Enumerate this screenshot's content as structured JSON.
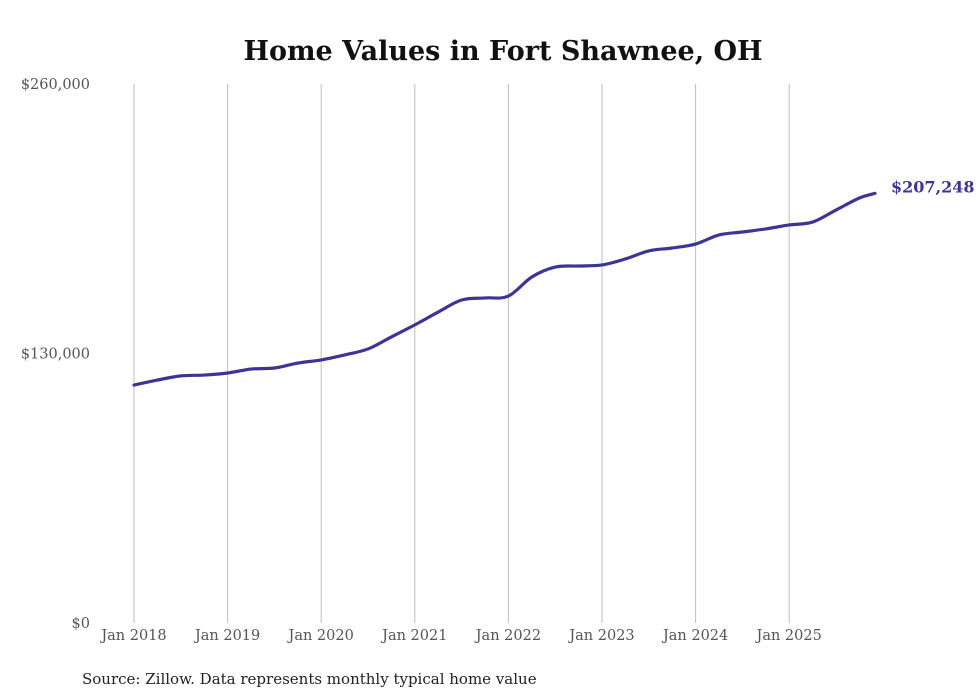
{
  "chart_data": {
    "type": "line",
    "title": "Home Values in Fort Shawnee, OH",
    "xlabel": "",
    "ylabel": "",
    "ylim": [
      0,
      260000
    ],
    "y_ticks": [
      "$0",
      "$130,000",
      "$260,000"
    ],
    "y_tick_values": [
      0,
      130000,
      260000
    ],
    "x_ticks": [
      "Jan 2018",
      "Jan 2019",
      "Jan 2020",
      "Jan 2021",
      "Jan 2022",
      "Jan 2023",
      "Jan 2024",
      "Jan 2025"
    ],
    "grid": "vertical",
    "line_color": "#3d3594",
    "end_label": "$207,248",
    "series": [
      {
        "name": "Typical home value",
        "x": [
          "2018-01",
          "2018-04",
          "2018-07",
          "2018-10",
          "2019-01",
          "2019-04",
          "2019-07",
          "2019-10",
          "2020-01",
          "2020-04",
          "2020-07",
          "2020-10",
          "2021-01",
          "2021-04",
          "2021-07",
          "2021-10",
          "2022-01",
          "2022-04",
          "2022-07",
          "2022-10",
          "2023-01",
          "2023-04",
          "2023-07",
          "2023-10",
          "2024-01",
          "2024-04",
          "2024-07",
          "2024-10",
          "2025-01",
          "2025-04",
          "2025-07",
          "2025-10",
          "2025-12"
        ],
        "month_index": [
          0,
          3,
          6,
          9,
          12,
          15,
          18,
          21,
          24,
          27,
          30,
          33,
          36,
          39,
          42,
          45,
          48,
          51,
          54,
          57,
          60,
          63,
          66,
          69,
          72,
          75,
          78,
          81,
          84,
          87,
          90,
          93,
          95
        ],
        "values": [
          114800,
          117200,
          119200,
          119600,
          120600,
          122500,
          123000,
          125400,
          126900,
          129300,
          132200,
          138000,
          143800,
          150000,
          155800,
          156800,
          157700,
          166900,
          171700,
          172200,
          172700,
          175600,
          179500,
          180900,
          182800,
          187200,
          188600,
          190100,
          192000,
          193400,
          199200,
          205000,
          207248
        ]
      }
    ]
  },
  "source": "Source: Zillow. Data represents monthly typical home value"
}
